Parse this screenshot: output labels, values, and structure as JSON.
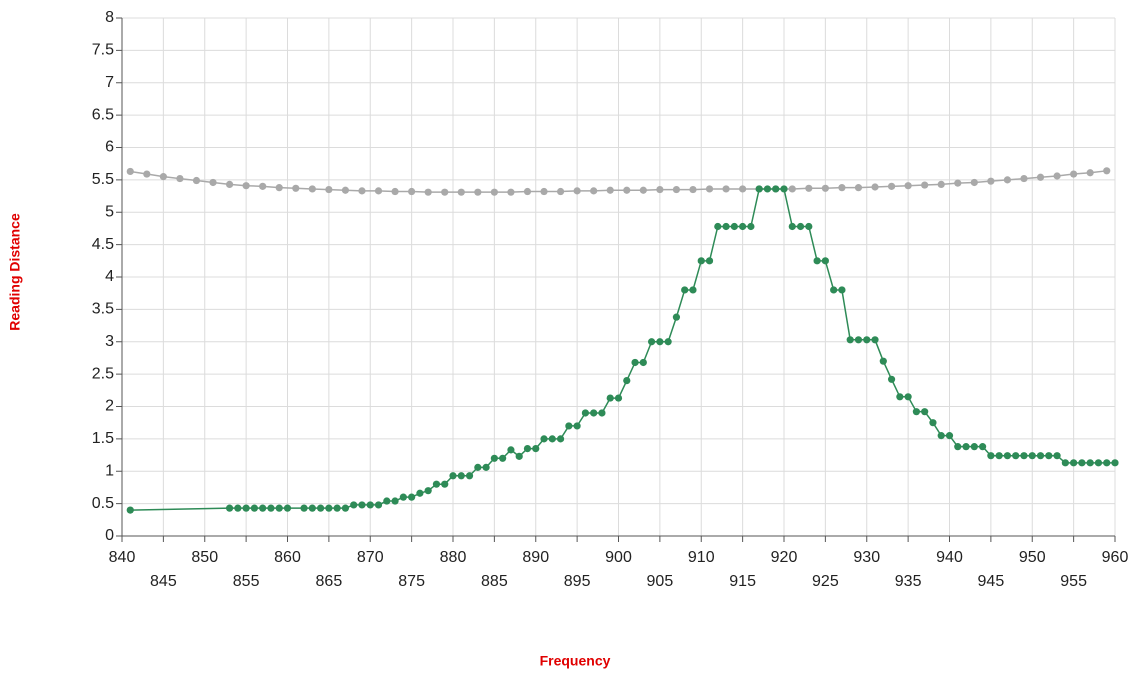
{
  "chart_data": {
    "type": "line",
    "x_label": "Frequency",
    "y_label": "Reading Distance",
    "xlim": [
      840,
      960
    ],
    "ylim": [
      0,
      8
    ],
    "xticks": [
      840,
      845,
      850,
      855,
      860,
      865,
      870,
      875,
      880,
      885,
      890,
      895,
      900,
      905,
      910,
      915,
      920,
      925,
      930,
      935,
      940,
      945,
      950,
      955,
      960
    ],
    "yticks": [
      0,
      0.5,
      1,
      1.5,
      2,
      2.5,
      3,
      3.5,
      4,
      4.5,
      5,
      5.5,
      6,
      6.5,
      7,
      7.5,
      8
    ],
    "grid": true,
    "series": [
      {
        "color": "#a9a9a9",
        "x": [
          841,
          843,
          845,
          847,
          849,
          851,
          853,
          855,
          857,
          859,
          861,
          863,
          865,
          867,
          869,
          871,
          873,
          875,
          877,
          879,
          881,
          883,
          885,
          887,
          889,
          891,
          893,
          895,
          897,
          899,
          901,
          903,
          905,
          907,
          909,
          911,
          913,
          915,
          917,
          919,
          921,
          923,
          925,
          927,
          929,
          931,
          933,
          935,
          937,
          939,
          941,
          943,
          945,
          947,
          949,
          951,
          953,
          955,
          957,
          959
        ],
        "values": [
          5.63,
          5.59,
          5.55,
          5.52,
          5.49,
          5.46,
          5.43,
          5.41,
          5.4,
          5.38,
          5.37,
          5.36,
          5.35,
          5.34,
          5.33,
          5.33,
          5.32,
          5.32,
          5.31,
          5.31,
          5.31,
          5.31,
          5.31,
          5.31,
          5.32,
          5.32,
          5.32,
          5.33,
          5.33,
          5.34,
          5.34,
          5.34,
          5.35,
          5.35,
          5.35,
          5.36,
          5.36,
          5.36,
          5.36,
          5.36,
          5.36,
          5.37,
          5.37,
          5.38,
          5.38,
          5.39,
          5.4,
          5.41,
          5.42,
          5.43,
          5.45,
          5.46,
          5.48,
          5.5,
          5.52,
          5.54,
          5.56,
          5.59,
          5.61,
          5.64
        ]
      },
      {
        "color": "#2e8b57",
        "x": [
          841,
          853,
          854,
          855,
          856,
          857,
          858,
          859,
          860,
          862,
          863,
          864,
          865,
          866,
          867,
          868,
          869,
          870,
          871,
          872,
          873,
          874,
          875,
          876,
          877,
          878,
          879,
          880,
          881,
          882,
          883,
          884,
          885,
          886,
          887,
          888,
          889,
          890,
          891,
          892,
          893,
          894,
          895,
          896,
          897,
          898,
          899,
          900,
          901,
          902,
          903,
          904,
          905,
          906,
          907,
          908,
          909,
          910,
          911,
          912,
          913,
          914,
          915,
          916,
          917,
          918,
          919,
          920,
          921,
          922,
          923,
          924,
          925,
          926,
          927,
          928,
          929,
          930,
          931,
          932,
          933,
          934,
          935,
          936,
          937,
          938,
          939,
          940,
          941,
          942,
          943,
          944,
          945,
          946,
          947,
          948,
          949,
          950,
          951,
          952,
          953,
          954,
          955,
          956,
          957,
          958,
          959,
          960
        ],
        "values": [
          0.4,
          0.43,
          0.43,
          0.43,
          0.43,
          0.43,
          0.43,
          0.43,
          0.43,
          0.43,
          0.43,
          0.43,
          0.43,
          0.43,
          0.43,
          0.48,
          0.48,
          0.48,
          0.48,
          0.54,
          0.54,
          0.6,
          0.6,
          0.66,
          0.7,
          0.8,
          0.8,
          0.93,
          0.93,
          0.93,
          1.06,
          1.06,
          1.2,
          1.2,
          1.33,
          1.23,
          1.35,
          1.35,
          1.5,
          1.5,
          1.5,
          1.7,
          1.7,
          1.9,
          1.9,
          1.9,
          2.13,
          2.13,
          2.4,
          2.68,
          2.68,
          3.0,
          3.0,
          3.0,
          3.38,
          3.8,
          3.8,
          4.25,
          4.25,
          4.78,
          4.78,
          4.78,
          4.78,
          4.78,
          5.36,
          5.36,
          5.36,
          5.36,
          4.78,
          4.78,
          4.78,
          4.25,
          4.25,
          3.8,
          3.8,
          3.03,
          3.03,
          3.03,
          3.03,
          2.7,
          2.42,
          2.15,
          2.15,
          1.92,
          1.92,
          1.75,
          1.55,
          1.55,
          1.38,
          1.38,
          1.38,
          1.38,
          1.24,
          1.24,
          1.24,
          1.24,
          1.24,
          1.24,
          1.24,
          1.24,
          1.24,
          1.13,
          1.13,
          1.13,
          1.13,
          1.13,
          1.13,
          1.13
        ]
      }
    ]
  }
}
